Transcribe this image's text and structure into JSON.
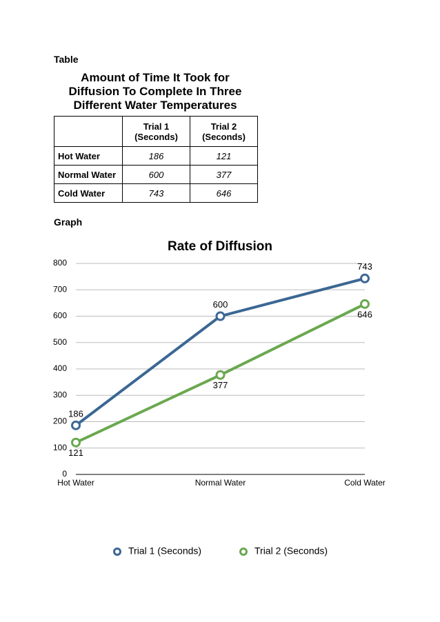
{
  "table_heading": "Table",
  "table": {
    "title": "Amount of Time It Took for Diffusion To Complete In Three Different Water Temperatures",
    "columns": [
      "Trial 1 (Seconds)",
      "Trial 2 (Seconds)"
    ],
    "rows": [
      [
        "Hot Water",
        186,
        121
      ],
      [
        "Normal Water",
        600,
        377
      ],
      [
        "Cold Water",
        743,
        646
      ]
    ]
  },
  "graph_heading": "Graph",
  "chart_data": {
    "type": "line",
    "title": "Rate of Diffusion",
    "categories": [
      "Hot Water",
      "Normal Water",
      "Cold Water"
    ],
    "series": [
      {
        "name": "Trial 1 (Seconds)",
        "color": "#3b6794",
        "values": [
          186,
          600,
          743
        ]
      },
      {
        "name": "Trial 2 (Seconds)",
        "color": "#6aa84f",
        "values": [
          121,
          377,
          646
        ]
      }
    ],
    "ylim": [
      0,
      800
    ],
    "yticks": [
      0,
      100,
      200,
      300,
      400,
      500,
      600,
      700,
      800
    ],
    "grid": true,
    "legend": "bottom"
  }
}
